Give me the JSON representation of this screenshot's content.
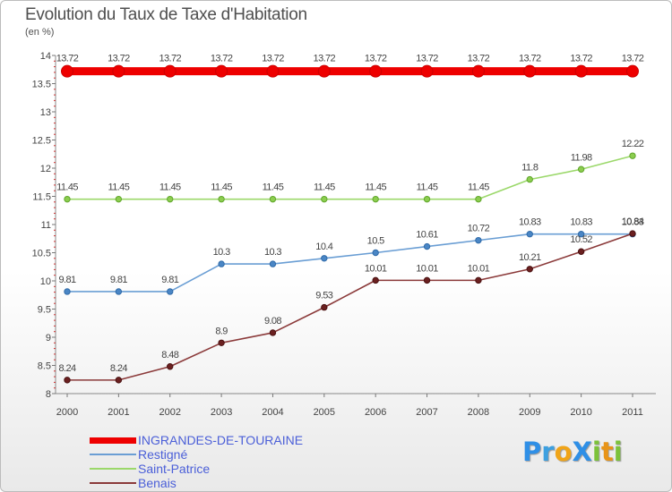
{
  "title": "Evolution du Taux de Taxe d'Habitation",
  "subtitle": "(en %)",
  "logo": {
    "text": "Proxiti",
    "letters": [
      {
        "ch": "P",
        "color": "#2f8fe6"
      },
      {
        "ch": "r",
        "color": "#3da0e0"
      },
      {
        "ch": "o",
        "color": "#f0a418"
      },
      {
        "ch": "X",
        "color": "#2f8fe6"
      },
      {
        "ch": "i",
        "color": "#7cc23a"
      },
      {
        "ch": "t",
        "color": "#e89418"
      },
      {
        "ch": "i",
        "color": "#7cc23a"
      }
    ]
  },
  "chart_data": {
    "type": "line",
    "title": "Evolution du Taux de Taxe d'Habitation",
    "subtitle": "(en %)",
    "x": [
      "2000",
      "2001",
      "2002",
      "2003",
      "2004",
      "2005",
      "2006",
      "2007",
      "2008",
      "2009",
      "2010",
      "2011"
    ],
    "ylim": [
      8,
      14
    ],
    "yticks": [
      "8",
      "8.5",
      "9",
      "9.5",
      "10",
      "10.5",
      "11",
      "11.5",
      "12",
      "12.5",
      "13",
      "13.5",
      "14"
    ],
    "grid": false,
    "legend_position": "bottom",
    "series": [
      {
        "name": "INGRANDES-DE-TOURAINE",
        "color": "#ee0000",
        "values": [
          13.72,
          13.72,
          13.72,
          13.72,
          13.72,
          13.72,
          13.72,
          13.72,
          13.72,
          13.72,
          13.72,
          13.72
        ],
        "labels": [
          "13.72",
          "13.72",
          "13.72",
          "13.72",
          "13.72",
          "13.72",
          "13.72",
          "13.72",
          "13.72",
          "13.72",
          "13.72",
          "13.72"
        ]
      },
      {
        "name": "Restigné",
        "color": "#6a9ed4",
        "values": [
          9.81,
          9.81,
          9.81,
          10.3,
          10.3,
          10.4,
          10.5,
          10.61,
          10.72,
          10.83,
          10.83,
          10.83
        ],
        "labels": [
          "9.81",
          "9.81",
          "9.81",
          "10.3",
          "10.3",
          "10.4",
          "10.5",
          "10.61",
          "10.72",
          "10.83",
          "10.83",
          "10.83"
        ]
      },
      {
        "name": "Saint-Patrice",
        "color": "#9bd86a",
        "values": [
          11.45,
          11.45,
          11.45,
          11.45,
          11.45,
          11.45,
          11.45,
          11.45,
          11.45,
          11.8,
          11.98,
          12.22
        ],
        "labels": [
          "11.45",
          "11.45",
          "11.45",
          "11.45",
          "11.45",
          "11.45",
          "11.45",
          "11.45",
          "11.45",
          "11.8",
          "11.98",
          "12.22"
        ]
      },
      {
        "name": "Benais",
        "color": "#8b3a3a",
        "values": [
          8.24,
          8.24,
          8.48,
          8.9,
          9.08,
          9.53,
          10.01,
          10.01,
          10.01,
          10.21,
          10.52,
          10.84
        ],
        "labels": [
          "8.24",
          "8.24",
          "8.48",
          "8.9",
          "9.08",
          "9.53",
          "10.01",
          "10.01",
          "10.01",
          "10.21",
          "10.52",
          "10.84"
        ]
      }
    ]
  }
}
